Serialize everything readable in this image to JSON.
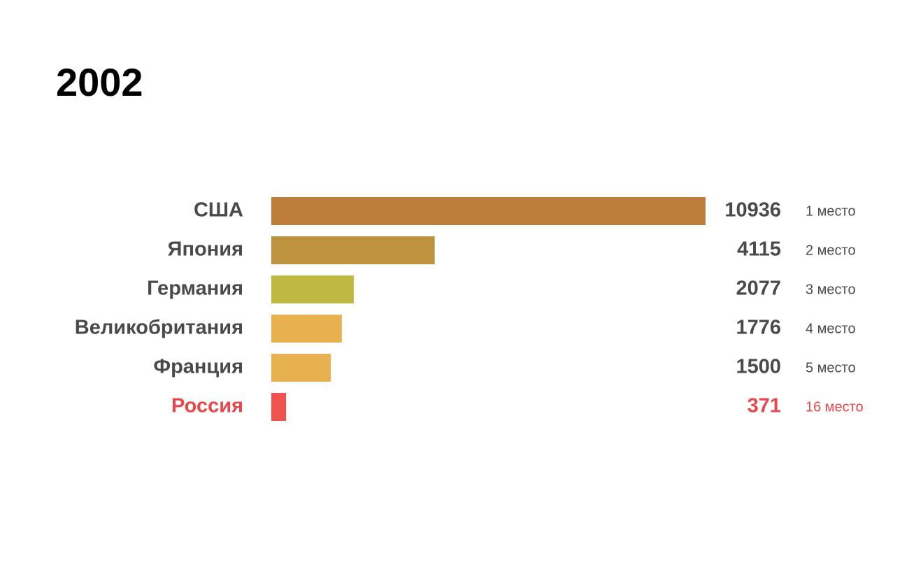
{
  "chart_data": {
    "type": "bar",
    "orientation": "horizontal",
    "title": "2002",
    "categories": [
      "США",
      "Япония",
      "Германия",
      "Великобритания",
      "Франция",
      "Россия"
    ],
    "values": [
      10936,
      4115,
      2077,
      1776,
      1500,
      371
    ],
    "ranks": [
      "1 место",
      "2 место",
      "3 место",
      "4 место",
      "5 место",
      "16 место"
    ],
    "colors": [
      "#bd7e3c",
      "#bd9340",
      "#bfb944",
      "#e8b14f",
      "#e8b14f",
      "#ef5350"
    ],
    "text_colors": [
      "#4a4a4a",
      "#4a4a4a",
      "#4a4a4a",
      "#4a4a4a",
      "#4a4a4a",
      "#e8474c"
    ]
  }
}
